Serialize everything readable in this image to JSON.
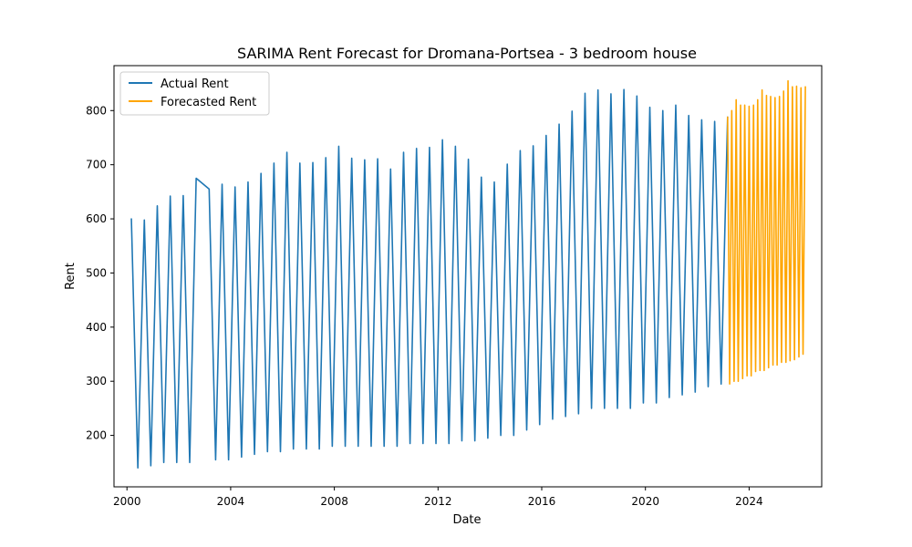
{
  "chart_data": {
    "type": "line",
    "title": "SARIMA Rent Forecast for Dromana-Portsea - 3 bedroom house",
    "xlabel": "Date",
    "ylabel": "Rent",
    "xlim": [
      1999.5,
      2026.8
    ],
    "ylim": [
      105,
      883
    ],
    "x_ticks": [
      2000,
      2004,
      2008,
      2012,
      2016,
      2020,
      2024
    ],
    "y_ticks": [
      200,
      300,
      400,
      500,
      600,
      700,
      800
    ],
    "grid": false,
    "legend_position": "top-left",
    "series": [
      {
        "name": "Actual Rent",
        "color": "#1f77b4",
        "x": [
          2000.17,
          2000.42,
          2000.67,
          2000.92,
          2001.17,
          2001.42,
          2001.67,
          2001.92,
          2002.17,
          2002.42,
          2002.67,
          2003.17,
          2003.42,
          2003.67,
          2003.92,
          2004.17,
          2004.42,
          2004.67,
          2004.92,
          2005.17,
          2005.42,
          2005.67,
          2005.92,
          2006.17,
          2006.42,
          2006.67,
          2006.92,
          2007.17,
          2007.42,
          2007.67,
          2007.92,
          2008.17,
          2008.42,
          2008.67,
          2008.92,
          2009.17,
          2009.42,
          2009.67,
          2009.92,
          2010.17,
          2010.42,
          2010.67,
          2010.92,
          2011.17,
          2011.42,
          2011.67,
          2011.92,
          2012.17,
          2012.42,
          2012.67,
          2012.92,
          2013.17,
          2013.42,
          2013.67,
          2013.92,
          2014.17,
          2014.42,
          2014.67,
          2014.92,
          2015.17,
          2015.42,
          2015.67,
          2015.92,
          2016.17,
          2016.42,
          2016.67,
          2016.92,
          2017.17,
          2017.42,
          2017.67,
          2017.92,
          2018.17,
          2018.42,
          2018.67,
          2018.92,
          2019.17,
          2019.42,
          2019.67,
          2019.92,
          2020.17,
          2020.42,
          2020.67,
          2020.92,
          2021.17,
          2021.42,
          2021.67,
          2021.92,
          2022.17,
          2022.42,
          2022.67,
          2022.92,
          2023.17
        ],
        "y": [
          601,
          140,
          598,
          144,
          624,
          150,
          642,
          150,
          643,
          150,
          675,
          655,
          155,
          664,
          155,
          659,
          160,
          668,
          165,
          684,
          170,
          703,
          170,
          723,
          175,
          703,
          175,
          704,
          175,
          713,
          180,
          734,
          180,
          712,
          180,
          709,
          180,
          711,
          180,
          692,
          180,
          723,
          185,
          730,
          185,
          732,
          185,
          746,
          185,
          734,
          190,
          710,
          190,
          677,
          195,
          668,
          200,
          701,
          200,
          726,
          210,
          735,
          220,
          754,
          230,
          775,
          235,
          799,
          240,
          832,
          250,
          838,
          250,
          831,
          250,
          839,
          250,
          827,
          260,
          806,
          260,
          800,
          270,
          810,
          275,
          791,
          280,
          783,
          290,
          780,
          295,
          789
        ]
      },
      {
        "name": "Forecasted Rent",
        "color": "#ffa500",
        "x": [
          2023.25,
          2023.33,
          2023.42,
          2023.5,
          2023.58,
          2023.67,
          2023.75,
          2023.83,
          2023.92,
          2024.0,
          2024.08,
          2024.17,
          2024.25,
          2024.33,
          2024.42,
          2024.5,
          2024.58,
          2024.67,
          2024.75,
          2024.83,
          2024.92,
          2025.0,
          2025.08,
          2025.17,
          2025.25,
          2025.33,
          2025.42,
          2025.5,
          2025.58,
          2025.67,
          2025.75,
          2025.83,
          2025.92,
          2026.0,
          2026.08,
          2026.17
        ],
        "y": [
          295,
          800,
          300,
          820,
          300,
          810,
          305,
          810,
          310,
          808,
          310,
          810,
          318,
          820,
          320,
          838,
          320,
          828,
          325,
          826,
          330,
          824,
          330,
          826,
          335,
          836,
          335,
          855,
          338,
          844,
          340,
          845,
          345,
          842,
          350,
          845
        ]
      }
    ]
  }
}
